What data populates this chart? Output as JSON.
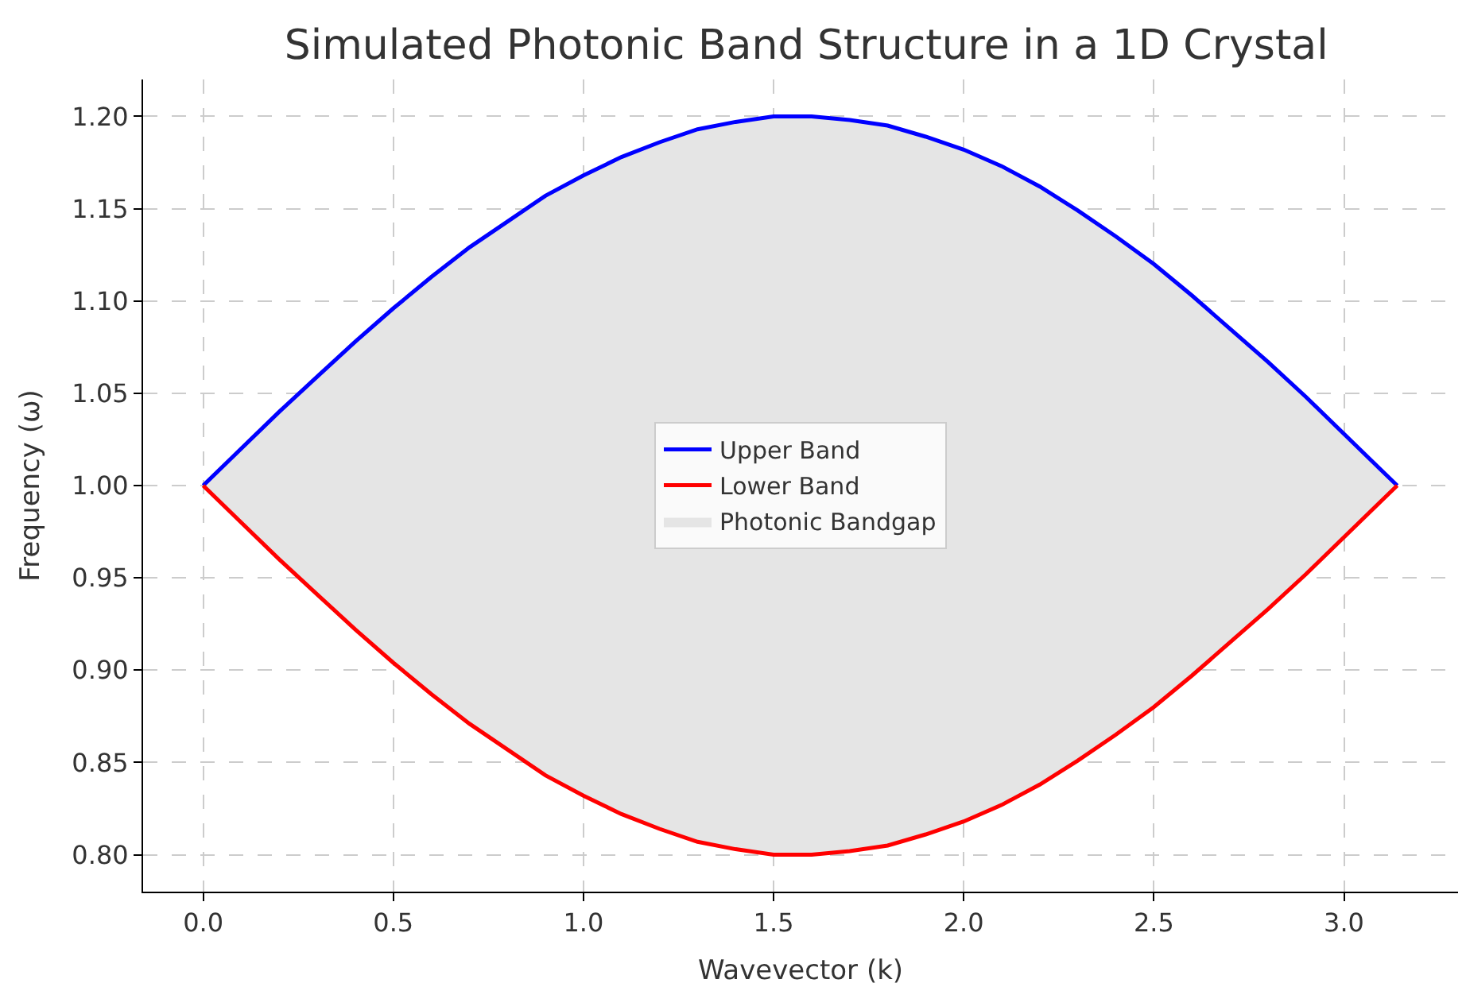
{
  "chart_data": {
    "type": "line",
    "title": "Simulated Photonic Band Structure in a 1D Crystal",
    "xlabel": "Wavevector (k)",
    "ylabel": "Frequency (ω)",
    "x": [
      0,
      0.1,
      0.2,
      0.3,
      0.4,
      0.5,
      0.6,
      0.7,
      0.8,
      0.9,
      1.0,
      1.1,
      1.2,
      1.3,
      1.4,
      1.5,
      1.57,
      1.6,
      1.7,
      1.8,
      1.9,
      2.0,
      2.1,
      2.2,
      2.3,
      2.4,
      2.5,
      2.6,
      2.7,
      2.8,
      2.9,
      3.0,
      3.1,
      3.14
    ],
    "series": [
      {
        "name": "Photonic Bandgap",
        "type": "area",
        "color": "#e5e5e5",
        "values": [
          null,
          null,
          null,
          null,
          null,
          null,
          null,
          null,
          null,
          null,
          null,
          null,
          null,
          null,
          null,
          null,
          null,
          null,
          null,
          null,
          null,
          null,
          null,
          null,
          null,
          null,
          null,
          null,
          null,
          null,
          null,
          null,
          null,
          null
        ],
        "upper": [
          1.0,
          1.02,
          1.04,
          1.059,
          1.078,
          1.096,
          1.113,
          1.129,
          1.143,
          1.157,
          1.168,
          1.178,
          1.186,
          1.193,
          1.197,
          1.2,
          1.2,
          1.2,
          1.198,
          1.195,
          1.189,
          1.182,
          1.173,
          1.162,
          1.149,
          1.135,
          1.12,
          1.103,
          1.085,
          1.067,
          1.048,
          1.028,
          1.008,
          1.0
        ],
        "lower": [
          1.0,
          0.98,
          0.96,
          0.941,
          0.922,
          0.904,
          0.887,
          0.871,
          0.857,
          0.843,
          0.832,
          0.822,
          0.814,
          0.807,
          0.803,
          0.8,
          0.8,
          0.8,
          0.802,
          0.805,
          0.811,
          0.818,
          0.827,
          0.838,
          0.851,
          0.865,
          0.88,
          0.897,
          0.915,
          0.933,
          0.952,
          0.972,
          0.992,
          1.0
        ]
      },
      {
        "name": "Upper Band",
        "color": "#0000ff",
        "values": [
          1.0,
          1.02,
          1.04,
          1.059,
          1.078,
          1.096,
          1.113,
          1.129,
          1.143,
          1.157,
          1.168,
          1.178,
          1.186,
          1.193,
          1.197,
          1.2,
          1.2,
          1.2,
          1.198,
          1.195,
          1.189,
          1.182,
          1.173,
          1.162,
          1.149,
          1.135,
          1.12,
          1.103,
          1.085,
          1.067,
          1.048,
          1.028,
          1.008,
          1.0
        ]
      },
      {
        "name": "Lower Band",
        "color": "#ff0000",
        "values": [
          1.0,
          0.98,
          0.96,
          0.941,
          0.922,
          0.904,
          0.887,
          0.871,
          0.857,
          0.843,
          0.832,
          0.822,
          0.814,
          0.807,
          0.803,
          0.8,
          0.8,
          0.8,
          0.802,
          0.805,
          0.811,
          0.818,
          0.827,
          0.838,
          0.851,
          0.865,
          0.88,
          0.897,
          0.915,
          0.933,
          0.952,
          0.972,
          0.992,
          1.0
        ]
      }
    ],
    "xlim": [
      -0.158,
      3.3
    ],
    "ylim": [
      0.78,
      1.22
    ],
    "xticks": [
      {
        "value": 0,
        "label": "0.0"
      },
      0.5,
      {
        "value": 1,
        "label": "1.0"
      },
      1.5,
      {
        "value": 2,
        "label": "2.0"
      },
      2.5,
      {
        "value": 3,
        "label": "3.0"
      }
    ],
    "yticks": [
      {
        "value": 0.8,
        "label": "0.80"
      },
      0.85,
      {
        "value": 0.9,
        "label": "0.90"
      },
      0.95,
      {
        "value": 1,
        "label": "1.00"
      },
      1.05,
      {
        "value": 1.1,
        "label": "1.10"
      },
      1.15,
      {
        "value": 1.2,
        "label": "1.20"
      }
    ],
    "grid": true,
    "legend": "center",
    "line_style": "solid",
    "marker": "none"
  }
}
